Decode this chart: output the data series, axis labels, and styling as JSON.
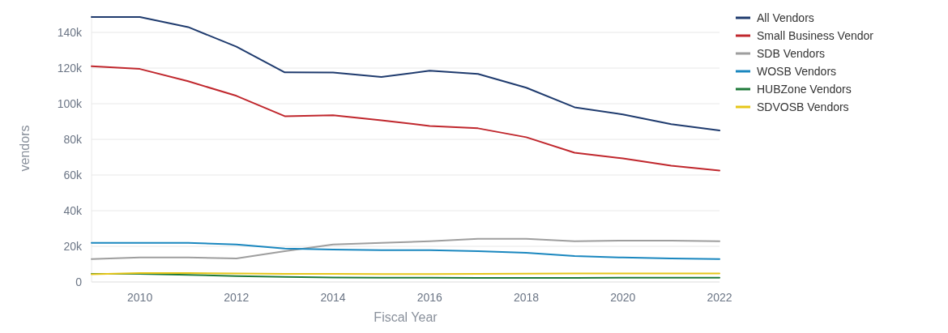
{
  "chart_data": {
    "type": "line",
    "xlabel": "Fiscal Year",
    "ylabel": "vendors",
    "x": [
      2009,
      2010,
      2011,
      2012,
      2013,
      2014,
      2015,
      2016,
      2017,
      2018,
      2019,
      2020,
      2021,
      2022
    ],
    "xlim": [
      2009,
      2022
    ],
    "xticks": [
      2010,
      2012,
      2014,
      2016,
      2018,
      2020,
      2022
    ],
    "ylim": [
      0,
      150000
    ],
    "yticks": [
      0,
      {
        "value": 20000,
        "label": "20k"
      },
      {
        "value": 40000,
        "label": "40k"
      },
      {
        "value": 60000,
        "label": "60k"
      },
      {
        "value": 80000,
        "label": "80k"
      },
      {
        "value": 100000,
        "label": "100k"
      },
      {
        "value": 120000,
        "label": "120k"
      },
      {
        "value": 140000,
        "label": "140k"
      }
    ],
    "grid": "y",
    "legend": "top right",
    "marker": "none",
    "line_style": "solid",
    "series": [
      {
        "name": "All Vendors",
        "color": "#1f3b6e",
        "values": [
          148600,
          148600,
          143000,
          132000,
          117600,
          117500,
          115000,
          118500,
          116700,
          109000,
          98000,
          94000,
          88500,
          85000
        ]
      },
      {
        "name": "Small Business Vendor",
        "color": "#c0272d",
        "values": [
          121000,
          119500,
          112600,
          104400,
          93000,
          93500,
          90700,
          87500,
          86200,
          81200,
          72500,
          69300,
          65200,
          62500
        ]
      },
      {
        "name": "SDB Vendors",
        "color": "#9e9e9e",
        "values": [
          12800,
          13700,
          13700,
          13200,
          17300,
          21000,
          21900,
          22800,
          24200,
          24200,
          22800,
          23200,
          23200,
          22800
        ]
      },
      {
        "name": "WOSB Vendors",
        "color": "#1a87bf",
        "values": [
          21900,
          21900,
          21900,
          21000,
          18700,
          18200,
          17800,
          17800,
          17300,
          16400,
          14600,
          13700,
          13200,
          12800
        ]
      },
      {
        "name": "HUBZone Vendors",
        "color": "#1f7a3a",
        "values": [
          4500,
          4500,
          4000,
          3300,
          2800,
          2500,
          2400,
          2400,
          2300,
          2300,
          2300,
          2400,
          2400,
          2400
        ]
      },
      {
        "name": "SDVOSB Vendors",
        "color": "#e6c619",
        "values": [
          4300,
          5000,
          5000,
          4800,
          4600,
          4600,
          4400,
          4400,
          4600,
          4700,
          4800,
          4800,
          4800,
          4800
        ]
      }
    ]
  }
}
